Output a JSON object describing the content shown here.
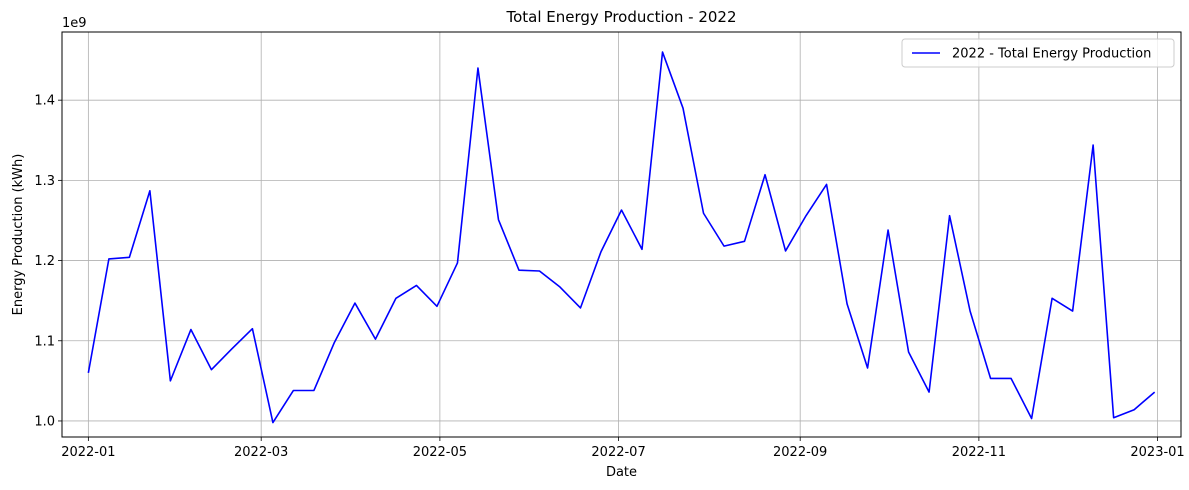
{
  "chart_data": {
    "type": "line",
    "title": "Total Energy Production - 2022",
    "xlabel": "Date",
    "ylabel": "Energy Production (kWh)",
    "y_offset_label": "1e9",
    "grid": true,
    "legend_position": "top-right",
    "x_range": [
      "2021-12-23",
      "2023-01-09"
    ],
    "y_range": [
      980000000.0,
      1485000000.0
    ],
    "x_ticks": [
      "2022-01-01",
      "2022-03-01",
      "2022-05-01",
      "2022-07-01",
      "2022-09-01",
      "2022-11-01",
      "2023-01-01"
    ],
    "x_tick_labels": [
      "2022-01",
      "2022-03",
      "2022-05",
      "2022-07",
      "2022-09",
      "2022-11",
      "2023-01"
    ],
    "y_ticks": [
      1000000000.0,
      1100000000.0,
      1200000000.0,
      1300000000.0,
      1400000000.0
    ],
    "y_tick_labels": [
      "1.0",
      "1.1",
      "1.2",
      "1.3",
      "1.4"
    ],
    "series": [
      {
        "name": "2022 - Total Energy Production",
        "color": "#0000ff",
        "x": [
          "2022-01-01",
          "2022-01-08",
          "2022-01-15",
          "2022-01-22",
          "2022-01-29",
          "2022-02-05",
          "2022-02-12",
          "2022-02-19",
          "2022-02-26",
          "2022-03-05",
          "2022-03-12",
          "2022-03-19",
          "2022-03-26",
          "2022-04-02",
          "2022-04-09",
          "2022-04-16",
          "2022-04-23",
          "2022-04-30",
          "2022-05-07",
          "2022-05-14",
          "2022-05-21",
          "2022-05-28",
          "2022-06-04",
          "2022-06-11",
          "2022-06-18",
          "2022-06-25",
          "2022-07-02",
          "2022-07-09",
          "2022-07-16",
          "2022-07-23",
          "2022-07-30",
          "2022-08-06",
          "2022-08-13",
          "2022-08-20",
          "2022-08-27",
          "2022-09-03",
          "2022-09-10",
          "2022-09-17",
          "2022-09-24",
          "2022-10-01",
          "2022-10-08",
          "2022-10-15",
          "2022-10-22",
          "2022-10-29",
          "2022-11-05",
          "2022-11-12",
          "2022-11-19",
          "2022-11-26",
          "2022-12-03",
          "2022-12-10",
          "2022-12-17",
          "2022-12-24",
          "2022-12-31"
        ],
        "y": [
          1060000000.0,
          1202000000.0,
          1204000000.0,
          1287000000.0,
          1050000000.0,
          1114000000.0,
          1064000000.0,
          1090000000.0,
          1115000000.0,
          998000000.0,
          1038000000.0,
          1038000000.0,
          1098000000.0,
          1147000000.0,
          1102000000.0,
          1153000000.0,
          1169000000.0,
          1143000000.0,
          1197000000.0,
          1440000000.0,
          1251000000.0,
          1188000000.0,
          1187000000.0,
          1167000000.0,
          1141000000.0,
          1211000000.0,
          1263000000.0,
          1214000000.0,
          1460000000.0,
          1390000000.0,
          1259000000.0,
          1218000000.0,
          1224000000.0,
          1307000000.0,
          1212000000.0,
          1256000000.0,
          1295000000.0,
          1146000000.0,
          1066000000.0,
          1238000000.0,
          1086000000.0,
          1036000000.0,
          1256000000.0,
          1137000000.0,
          1053000000.0,
          1053000000.0,
          1003000000.0,
          1153000000.0,
          1137000000.0,
          1344000000.0,
          1004000000.0,
          1014000000.0,
          1036000000.0
        ]
      }
    ]
  }
}
